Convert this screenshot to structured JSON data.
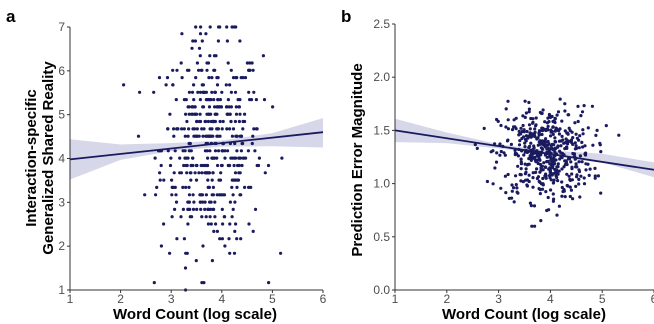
{
  "chart_data": [
    {
      "panel_label": "a",
      "type": "scatter",
      "xlabel": "Word Count (log scale)",
      "ylabel": [
        "Interaction-specific",
        "Generalized Shared Reality"
      ],
      "xlim": [
        1,
        6
      ],
      "ylim": [
        1,
        7
      ],
      "xticks": [
        1,
        2,
        3,
        4,
        5,
        6
      ],
      "yticks": [
        1,
        2,
        3,
        4,
        5,
        6,
        7
      ],
      "grid": false,
      "point_count": 500,
      "points_summary": {
        "x_center": 3.8,
        "x_sd": 0.5,
        "y_values_discrete_step": 0.167,
        "y_center": 4.3,
        "y_sd": 1.2
      },
      "fit_line": {
        "x": [
          1,
          6
        ],
        "y": [
          3.98,
          4.6
        ]
      },
      "confidence_band": {
        "x": [
          1,
          2,
          3,
          4,
          5,
          6
        ],
        "lower": [
          3.52,
          3.97,
          4.17,
          4.27,
          4.28,
          4.25
        ],
        "upper": [
          4.44,
          4.32,
          4.35,
          4.41,
          4.58,
          4.92
        ]
      },
      "colors": {
        "points": "#1a1a5e",
        "line": "#1a1a5e",
        "band": "#c8c9e0"
      }
    },
    {
      "panel_label": "b",
      "type": "scatter",
      "xlabel": "Word Count (log scale)",
      "ylabel": "Prediction Error Magnitude",
      "xlim": [
        1,
        6
      ],
      "ylim": [
        0.0,
        2.5
      ],
      "xticks": [
        1,
        2,
        3,
        4,
        5,
        6
      ],
      "yticks": [
        "0.0",
        "0.5",
        "1.0",
        "1.5",
        "2.0",
        "2.5"
      ],
      "grid": false,
      "point_count": 520,
      "points_summary": {
        "x_center": 3.9,
        "x_sd": 0.45,
        "y_center": 1.28,
        "y_sd": 0.22
      },
      "fit_line": {
        "x": [
          1,
          6
        ],
        "y": [
          1.5,
          1.13
        ]
      },
      "confidence_band": {
        "x": [
          1,
          2,
          3,
          4,
          5,
          6
        ],
        "lower": [
          1.39,
          1.38,
          1.33,
          1.27,
          1.2,
          1.06
        ],
        "upper": [
          1.61,
          1.48,
          1.37,
          1.31,
          1.28,
          1.2
        ]
      },
      "colors": {
        "points": "#1a1a5e",
        "line": "#1a1a5e",
        "band": "#c8c9e0"
      }
    }
  ]
}
